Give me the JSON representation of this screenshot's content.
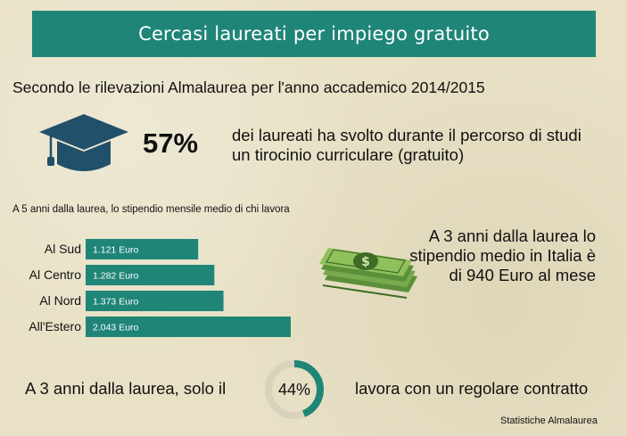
{
  "header": {
    "title": "Cercasi laureati per impiego gratuito"
  },
  "subtitle": "Secondo le rilevazioni Almalaurea per l'anno accademico 2014/2015",
  "stat_internship": {
    "percent_label": "57%",
    "text": "dei laureati ha svolto durante il percorso di studi un tirocinio curriculare (gratuito)"
  },
  "salary_average": {
    "text": "A 3 anni dalla laurea lo stipendio medio in Italia è di 940 Euro al mese"
  },
  "contract": {
    "left_text": "A 3 anni dalla laurea, solo il",
    "percent_label": "44%",
    "percent_value": 44,
    "right_text": "lavora con un regolare contratto"
  },
  "source": "Statistiche Almalaurea",
  "icons": {
    "cap": "graduation-cap-icon",
    "money": "money-stack-icon"
  },
  "colors": {
    "accent": "#1f8577",
    "ring_track": "#d9d3bd"
  },
  "chart_data": {
    "type": "bar",
    "orientation": "horizontal",
    "title": "A 5 anni dalla laurea, lo stipendio mensile medio di chi lavora",
    "categories": [
      "Al Sud",
      "Al Centro",
      "Al Nord",
      "All'Estero"
    ],
    "values": [
      1121,
      1282,
      1373,
      2043
    ],
    "value_labels": [
      "1.121 Euro",
      "1.282 Euro",
      "1.373 Euro",
      "2.043 Euro"
    ],
    "xlim": [
      0,
      2043
    ],
    "grid": false,
    "legend": "none"
  }
}
